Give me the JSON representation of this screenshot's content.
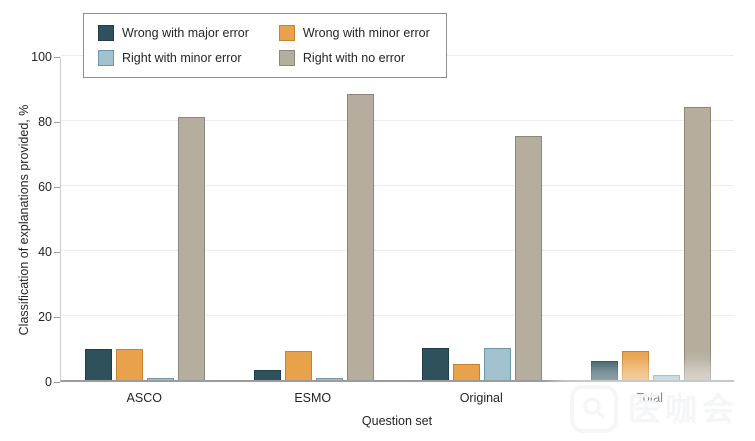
{
  "figure": {
    "background": "#ffffff",
    "text_color": "#252525",
    "gridline_color": "#ececec",
    "baseline_color": "#9b9b9b",
    "watermark": {
      "text": "医咖会",
      "logo_icon": "magnifier-app-icon"
    }
  },
  "chart_data": {
    "type": "bar",
    "title": "",
    "xlabel": "Question set",
    "ylabel": "Classification of explanations provided, %",
    "categories": [
      "ASCO",
      "ESMO",
      "Original",
      "Total"
    ],
    "series": [
      {
        "name": "Wrong with major error",
        "color": "#2e515c",
        "border": "#223d47",
        "values": [
          9.5,
          3,
          10,
          6
        ]
      },
      {
        "name": "Wrong with minor error",
        "color": "#e9a24c",
        "border": "#c8812e",
        "values": [
          9.5,
          9,
          5,
          9
        ]
      },
      {
        "name": "Right with minor error",
        "color": "#a2c1ce",
        "border": "#7097a8",
        "values": [
          0.5,
          0.5,
          10,
          1.5
        ]
      },
      {
        "name": "Right with no error",
        "color": "#b5ae9e",
        "border": "#8e8777",
        "values": [
          81,
          88,
          75,
          84
        ]
      }
    ],
    "ylim": [
      0,
      100
    ],
    "yticks": [
      0,
      20,
      40,
      60,
      80,
      100
    ],
    "grid": true,
    "legend_position": "top-left"
  }
}
